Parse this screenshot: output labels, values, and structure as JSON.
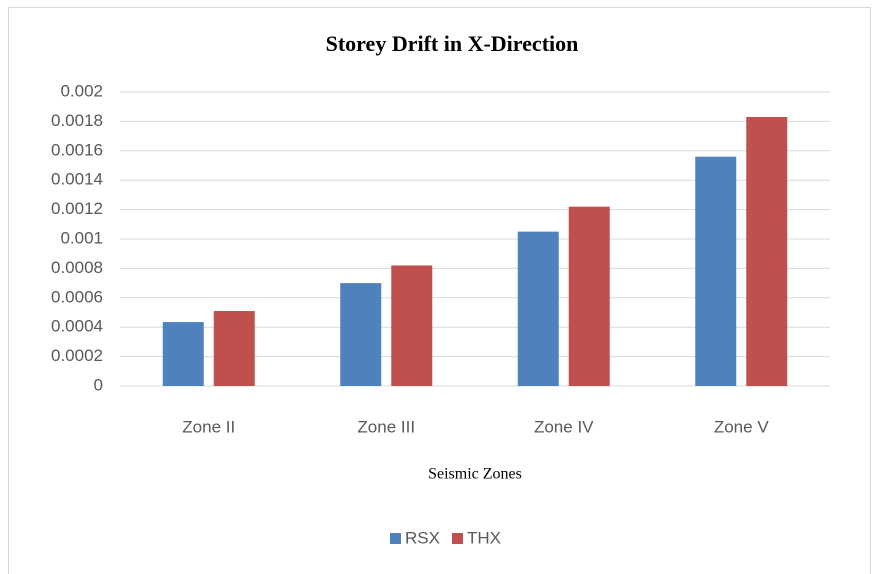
{
  "chart_data": {
    "type": "bar",
    "title": "Storey Drift in X-Direction",
    "x_label": "Seismic Zones",
    "categories": [
      "Zone II",
      "Zone III",
      "Zone IV",
      "Zone V"
    ],
    "series": [
      {
        "name": "RSX",
        "color": "#4f81bd",
        "values": [
          0.000435,
          0.0007,
          0.00105,
          0.00156
        ]
      },
      {
        "name": "THX",
        "color": "#c0504d",
        "values": [
          0.00051,
          0.00082,
          0.00122,
          0.00183
        ]
      }
    ],
    "ylim": [
      0,
      0.002
    ],
    "yticks": [
      0,
      0.0002,
      0.0004,
      0.0006,
      0.0008,
      0.001,
      0.0012,
      0.0014,
      0.0016,
      0.0018,
      0.002
    ],
    "grid": true,
    "legend": "bottom"
  }
}
